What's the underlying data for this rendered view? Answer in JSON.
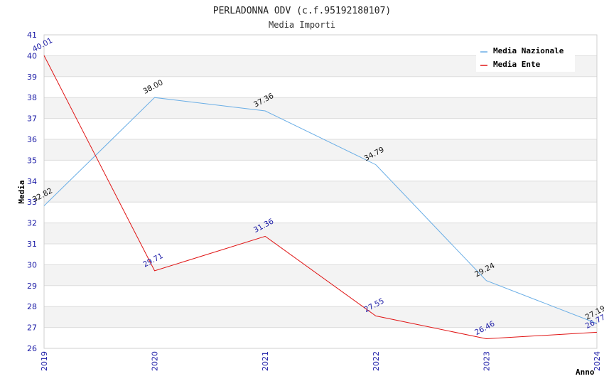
{
  "chart_data": {
    "type": "line",
    "title": "PERLADONNA ODV (c.f.95192180107)",
    "subtitle": "Media Importi",
    "xlabel": "Anno",
    "ylabel": "Media",
    "categories": [
      "2019",
      "2020",
      "2021",
      "2022",
      "2023",
      "2024"
    ],
    "ylim": [
      26,
      41
    ],
    "yticks": [
      "26",
      "27",
      "28",
      "29",
      "30",
      "31",
      "32",
      "33",
      "34",
      "35",
      "36",
      "37",
      "38",
      "39",
      "40",
      "41"
    ],
    "grid": true,
    "legend_position": "top-right",
    "series": [
      {
        "name": "Media Nazionale",
        "color": "#6aaee6",
        "values": [
          32.82,
          38.0,
          37.36,
          34.79,
          29.24,
          27.19
        ],
        "labels": [
          "32.82",
          "38.00",
          "37.36",
          "34.79",
          "29.24",
          "27.19"
        ]
      },
      {
        "name": "Media Ente",
        "color": "#e01515",
        "values": [
          40.01,
          29.71,
          31.36,
          27.55,
          26.46,
          26.77
        ],
        "labels": [
          "40.01",
          "29.71",
          "31.36",
          "27.55",
          "26.46",
          "26.77"
        ]
      }
    ]
  }
}
